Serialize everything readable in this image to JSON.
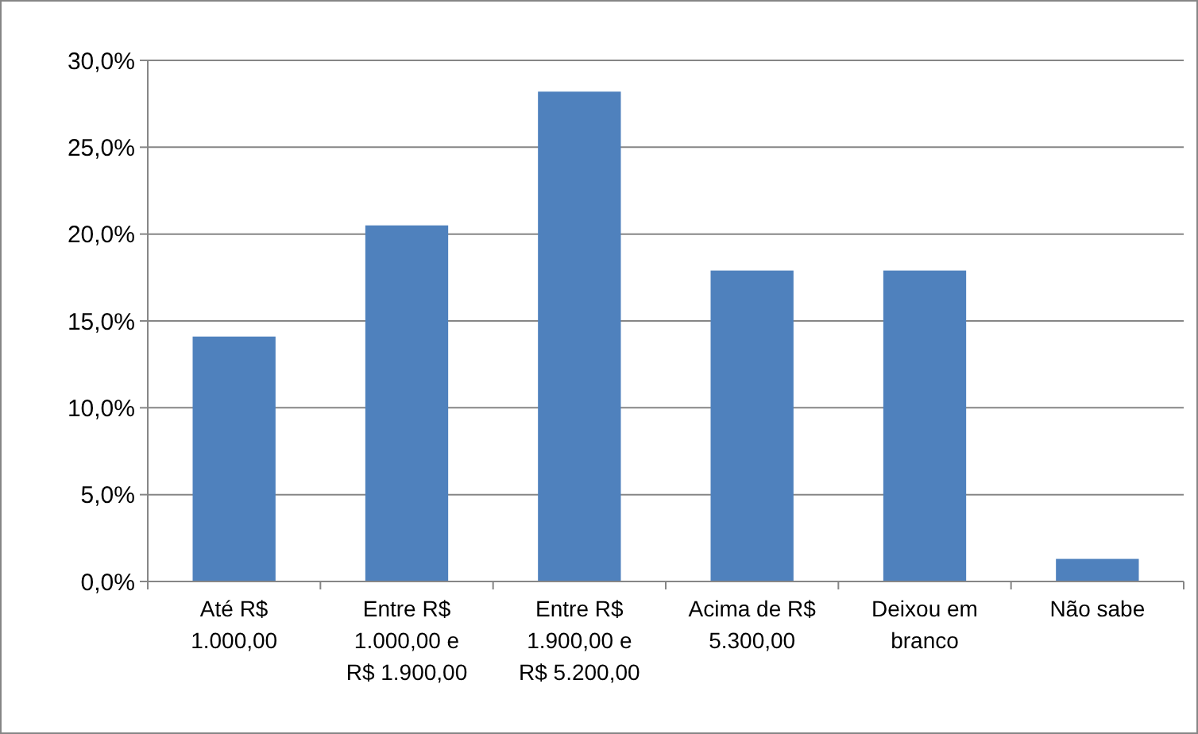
{
  "chart_data": {
    "type": "bar",
    "categories": [
      "Até R$ 1.000,00",
      "Entre R$ 1.000,00 e R$ 1.900,00",
      "Entre R$ 1.900,00 e R$ 5.200,00",
      "Acima de R$ 5.300,00",
      "Deixou em branco",
      "Não sabe"
    ],
    "values": [
      14.1,
      20.5,
      28.2,
      17.9,
      17.9,
      1.3
    ],
    "color": "#4f81bd",
    "ylim": [
      0,
      30
    ],
    "yticks": [
      {
        "value": 0,
        "label": "0,0%"
      },
      {
        "value": 5,
        "label": "5,0%"
      },
      {
        "value": 10,
        "label": "10,0%"
      },
      {
        "value": 15,
        "label": "15,0%"
      },
      {
        "value": 20,
        "label": "20,0%"
      },
      {
        "value": 25,
        "label": "25,0%"
      },
      {
        "value": 30,
        "label": "30,0%"
      }
    ],
    "grid": "y"
  }
}
